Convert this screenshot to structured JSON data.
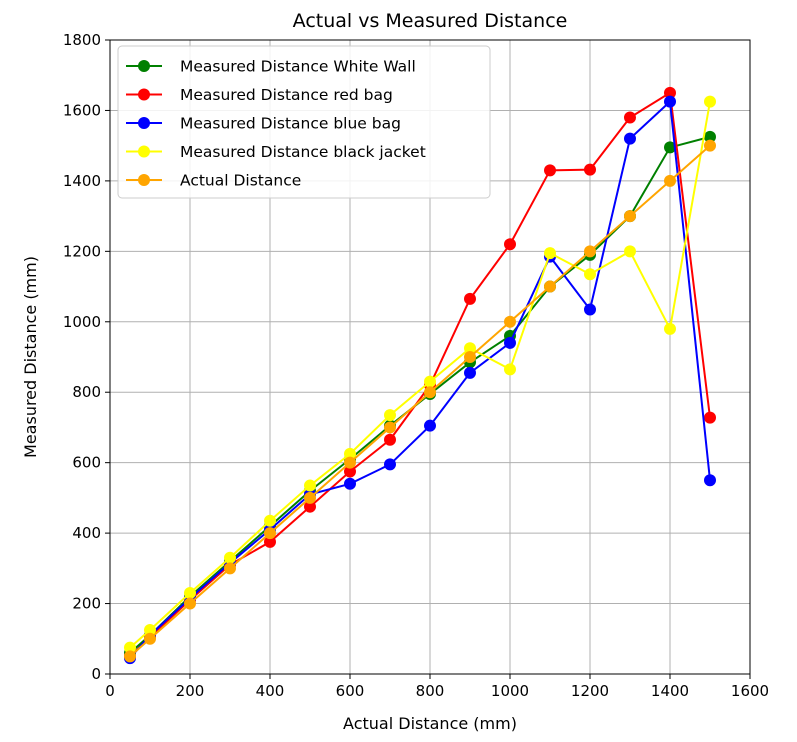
{
  "chart_data": {
    "type": "line",
    "title": "Actual vs Measured Distance",
    "xlabel": "Actual Distance (mm)",
    "ylabel": "Measured Distance (mm)",
    "xlim": [
      0,
      1600
    ],
    "ylim": [
      0,
      1800
    ],
    "xticks": [
      0,
      200,
      400,
      600,
      800,
      1000,
      1200,
      1400,
      1600
    ],
    "yticks": [
      0,
      200,
      400,
      600,
      800,
      1000,
      1200,
      1400,
      1600,
      1800
    ],
    "grid": true,
    "legend_position": "upper-left",
    "series": [
      {
        "name": "Measured Distance White Wall",
        "color": "#008000",
        "x": [
          50,
          100,
          200,
          300,
          400,
          500,
          600,
          700,
          800,
          900,
          1000,
          1100,
          1200,
          1300,
          1400,
          1500
        ],
        "y": [
          60,
          110,
          220,
          320,
          420,
          520,
          610,
          705,
          795,
          885,
          960,
          1100,
          1190,
          1300,
          1495,
          1525
        ]
      },
      {
        "name": "Measured Distance red bag",
        "color": "#ff0000",
        "x": [
          50,
          100,
          200,
          300,
          400,
          500,
          600,
          700,
          800,
          900,
          1000,
          1100,
          1200,
          1300,
          1400,
          1500
        ],
        "y": [
          50,
          105,
          210,
          310,
          375,
          475,
          575,
          665,
          820,
          1065,
          1220,
          1430,
          1432,
          1580,
          1650,
          728
        ]
      },
      {
        "name": "Measured Distance blue bag",
        "color": "#0000ff",
        "x": [
          50,
          100,
          200,
          300,
          400,
          500,
          600,
          700,
          800,
          900,
          1000,
          1100,
          1200,
          1300,
          1400,
          1500
        ],
        "y": [
          45,
          110,
          215,
          315,
          410,
          510,
          540,
          595,
          705,
          855,
          940,
          1185,
          1035,
          1520,
          1625,
          550
        ]
      },
      {
        "name": "Measured Distance black jacket",
        "color": "#ffff00",
        "x": [
          50,
          100,
          200,
          300,
          400,
          500,
          600,
          700,
          800,
          900,
          1000,
          1100,
          1200,
          1300,
          1400,
          1500
        ],
        "y": [
          75,
          125,
          230,
          330,
          435,
          535,
          625,
          735,
          830,
          925,
          865,
          1195,
          1135,
          1200,
          980,
          1625
        ]
      },
      {
        "name": "Actual Distance",
        "color": "#ffa500",
        "x": [
          50,
          100,
          200,
          300,
          400,
          500,
          600,
          700,
          800,
          900,
          1000,
          1100,
          1200,
          1300,
          1400,
          1500
        ],
        "y": [
          50,
          100,
          200,
          300,
          400,
          500,
          600,
          700,
          800,
          900,
          1000,
          1100,
          1200,
          1300,
          1400,
          1500
        ]
      }
    ]
  }
}
